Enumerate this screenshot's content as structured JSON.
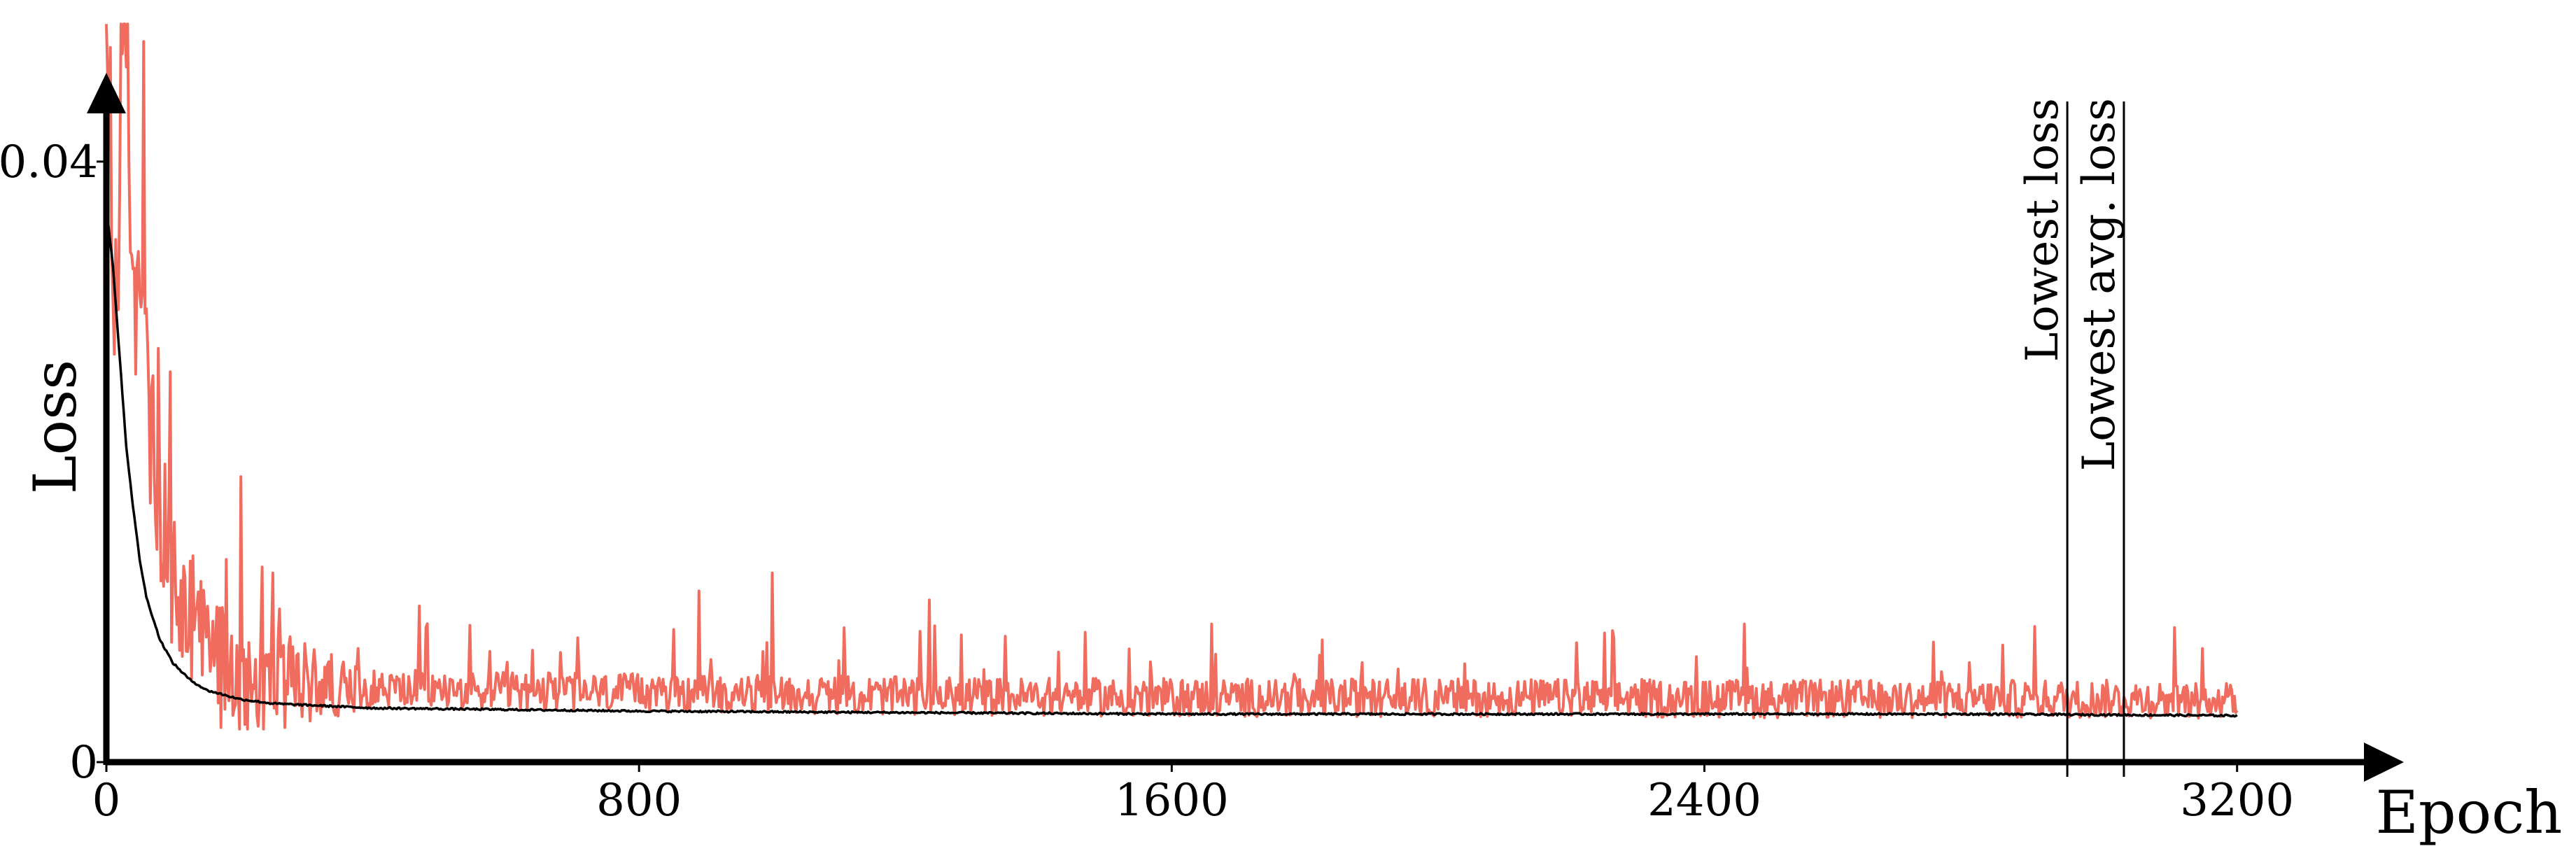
{
  "chart_data": {
    "type": "line",
    "title": "",
    "xlabel": "Epoch",
    "ylabel": "Loss",
    "xlim": [
      0,
      3400
    ],
    "ylim": [
      0,
      0.0482
    ],
    "x_ticks": [
      {
        "value": 0,
        "label": "0"
      },
      {
        "value": 800,
        "label": "800"
      },
      {
        "value": 1600,
        "label": "1600"
      },
      {
        "value": 2400,
        "label": "2400"
      },
      {
        "value": 3200,
        "label": "3200"
      }
    ],
    "y_ticks": [
      {
        "value": 0,
        "label": "0"
      },
      {
        "value": 0.04,
        "label": "0.04"
      }
    ],
    "grid": false,
    "legend": "none",
    "series": [
      {
        "color": "#f06c5e",
        "style": "noisy",
        "x": [
          0,
          10,
          20,
          30,
          40,
          50,
          60,
          70,
          80,
          100,
          120,
          150,
          180,
          200,
          250,
          300,
          400,
          500,
          600,
          800,
          1000,
          1200,
          1600,
          2000,
          2400,
          2800,
          3200
        ],
        "values": [
          0.047,
          0.03,
          0.035,
          0.049,
          0.031,
          0.027,
          0.024,
          0.019,
          0.015,
          0.011,
          0.0085,
          0.0068,
          0.0058,
          0.0053,
          0.005,
          0.0048,
          0.0047,
          0.0046,
          0.0045,
          0.0044,
          0.0043,
          0.0042,
          0.0041,
          0.0041,
          0.004,
          0.004,
          0.004
        ],
        "noise_amplitude": 0.0016,
        "spikes": [
          {
            "x": 55,
            "y": 0.048
          },
          {
            "x": 95,
            "y": 0.026
          },
          {
            "x": 180,
            "y": 0.0135
          },
          {
            "x": 250,
            "y": 0.0126
          },
          {
            "x": 470,
            "y": 0.0104
          },
          {
            "x": 890,
            "y": 0.0114
          },
          {
            "x": 1000,
            "y": 0.0126
          },
          {
            "x": 1235,
            "y": 0.0108
          },
          {
            "x": 1660,
            "y": 0.0092
          },
          {
            "x": 2250,
            "y": 0.0086
          },
          {
            "x": 2460,
            "y": 0.0092
          }
        ]
      },
      {
        "color": "#000000",
        "style": "smooth",
        "x": [
          0,
          10,
          20,
          30,
          40,
          50,
          60,
          80,
          100,
          125,
          150,
          200,
          250,
          300,
          400,
          600,
          800,
          1200,
          1600,
          2000,
          2400,
          2800,
          3200
        ],
        "values": [
          0.037,
          0.033,
          0.027,
          0.021,
          0.017,
          0.0135,
          0.011,
          0.0082,
          0.0066,
          0.0055,
          0.0048,
          0.0042,
          0.0039,
          0.0038,
          0.0036,
          0.0035,
          0.0034,
          0.0033,
          0.0032,
          0.0032,
          0.0032,
          0.0032,
          0.0031
        ]
      }
    ],
    "markers": [
      {
        "x": 2945,
        "label": "Lowest loss"
      },
      {
        "x": 3030,
        "label": "Lowest avg. loss"
      }
    ]
  }
}
